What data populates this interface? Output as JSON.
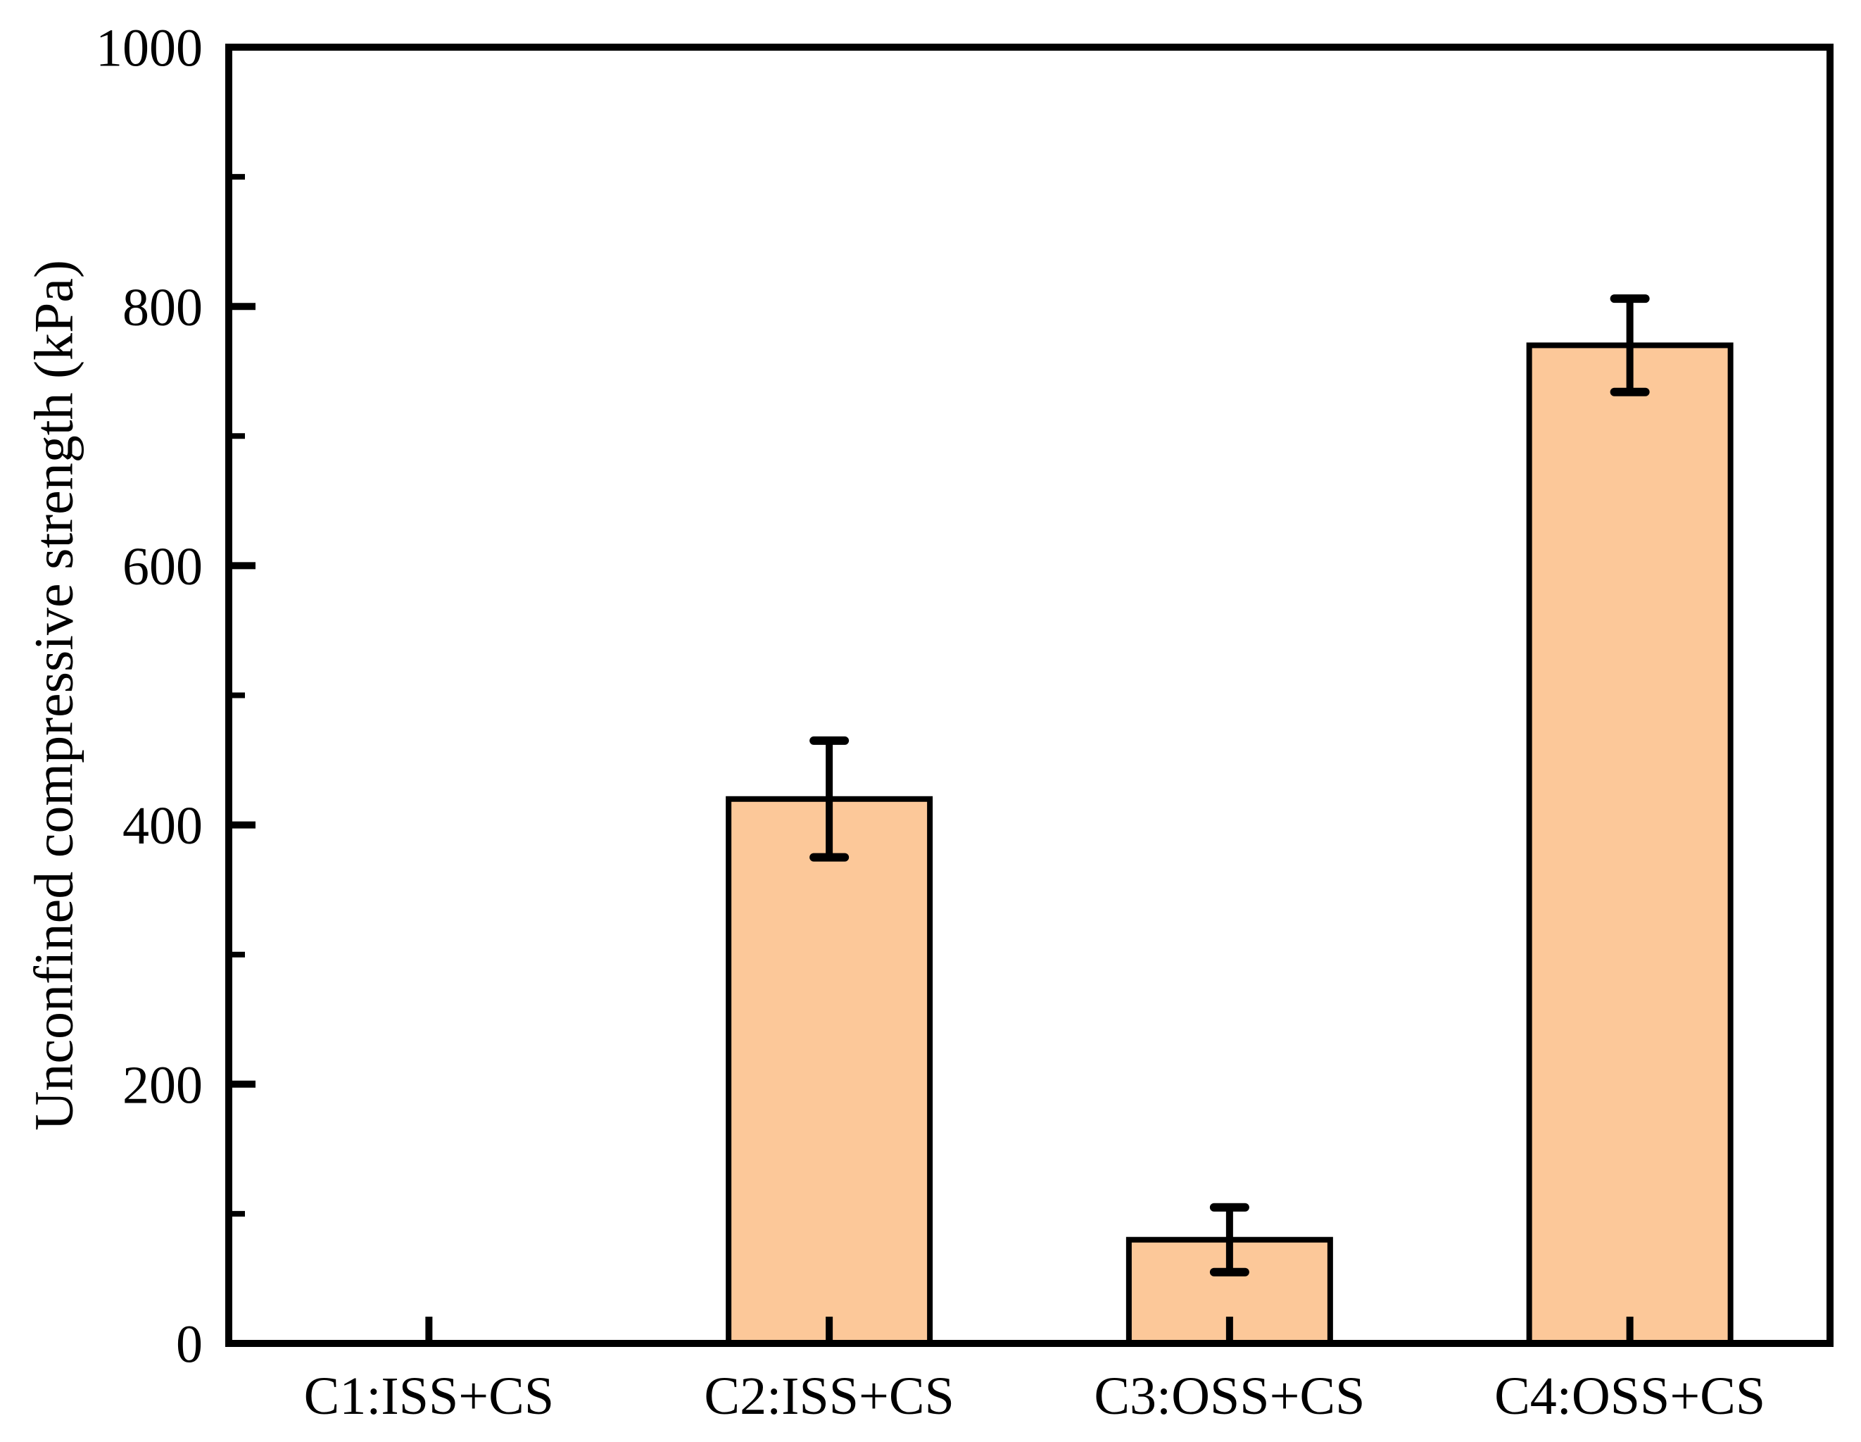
{
  "chart_data": {
    "type": "bar",
    "title": "",
    "categories": [
      "C1:ISS+CS",
      "C2:ISS+CS",
      "C3:OSS+CS",
      "C4:OSS+CS"
    ],
    "values": [
      0,
      420,
      80,
      770
    ],
    "error_bars": [
      0,
      45,
      25,
      36
    ],
    "xlabel": "",
    "ylabel": "Unconfined compressive strength (kPa)",
    "ylim": [
      0,
      1000
    ],
    "y_major_ticks": [
      0,
      200,
      400,
      600,
      800,
      1000
    ],
    "y_minor_ticks": [
      100,
      300,
      500,
      700,
      900
    ],
    "y_tick_labels": [
      "0",
      "200",
      "400",
      "600",
      "800",
      "1000"
    ],
    "grid": false,
    "legend": null,
    "colors": {
      "bar_fill": "#FCC899",
      "bar_edge": "#000000",
      "error_bar": "#000000",
      "axis": "#000000",
      "background": "#FFFFFF",
      "text": "#000000"
    }
  }
}
